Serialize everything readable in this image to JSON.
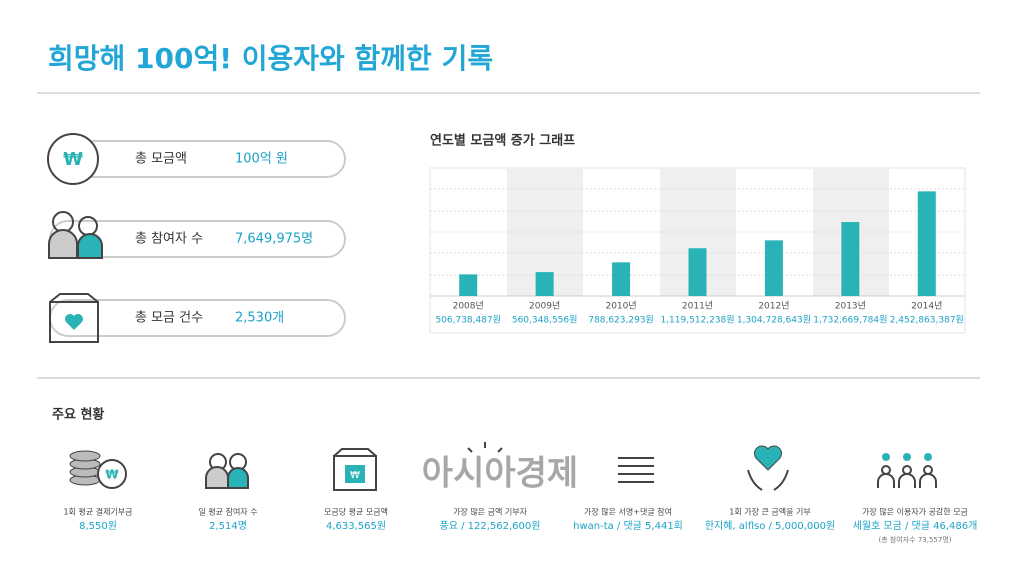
{
  "header": {
    "title": "희망해 100억! 이용자와 함께한 기록"
  },
  "summary": [
    {
      "label": "총 모금액",
      "value": "100억 원"
    },
    {
      "label": "총 참여자 수",
      "value": "7,649,975명"
    },
    {
      "label": "총 모금 건수",
      "value": "2,530개"
    }
  ],
  "chart_data": {
    "type": "bar",
    "title": "연도별 모금액 증가 그래프",
    "categories": [
      "2008년",
      "2009년",
      "2010년",
      "2011년",
      "2012년",
      "2013년",
      "2014년"
    ],
    "values": [
      506738487,
      560348556,
      788623293,
      1119512238,
      1304728643,
      1732669784,
      2452863387
    ],
    "value_labels": [
      "506,738,487원",
      "560,348,556원",
      "788,623,293원",
      "1,119,512,238원",
      "1,304,728,643원",
      "1,732,669,784원",
      "2,452,863,387원"
    ],
    "color": "#2ab3b6",
    "ylim": [
      0,
      3000000000
    ]
  },
  "status": {
    "title": "주요 현황",
    "items": [
      {
        "label": "1회 평균 결제기부금",
        "value": "8,550원"
      },
      {
        "label": "일 평균 참여자 수",
        "value": "2,514명"
      },
      {
        "label": "모금당 평균 모금액",
        "value": "4,633,565원"
      },
      {
        "label": "가장 많은 금액 기부자",
        "value": "풍요 / 122,562,600원"
      },
      {
        "label": "가장 많은 서명+댓글 참여",
        "value": "hwan-ta / 댓글 5,441회"
      },
      {
        "label": "1회 가장 큰 금액을 기부",
        "value": "한지혜, alflso / 5,000,000원"
      },
      {
        "label": "가장 많은 이용자가 공감한 모금",
        "value": "세월호 모금 / 댓글 46,486개",
        "note": "(총 참여자수 73,557명)"
      }
    ]
  },
  "watermark": "아시아경제"
}
